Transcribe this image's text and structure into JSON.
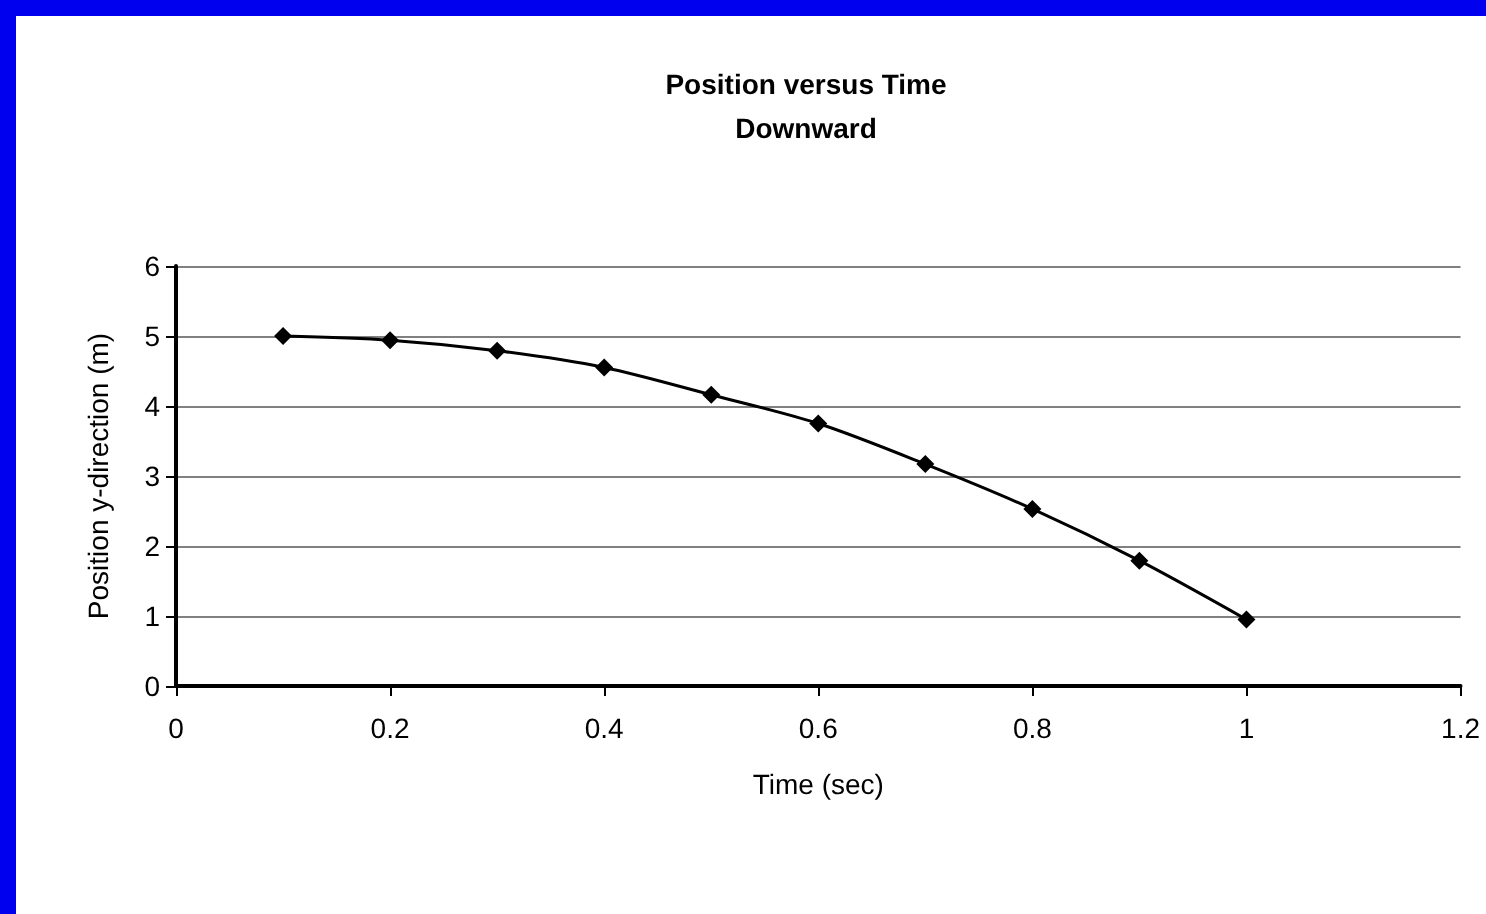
{
  "chart_data": {
    "type": "line",
    "title": "Position versus Time",
    "subtitle": "Downward",
    "xlabel": "Time (sec)",
    "ylabel": "Position y-direction (m)",
    "x": [
      0.1,
      0.2,
      0.3,
      0.4,
      0.5,
      0.6,
      0.7,
      0.8,
      0.9,
      1.0
    ],
    "series": [
      {
        "color": "#000000",
        "values": [
          5.0,
          4.94,
          4.79,
          4.55,
          4.16,
          3.75,
          3.17,
          2.53,
          1.79,
          0.95
        ]
      }
    ],
    "xlim": [
      0,
      1.2
    ],
    "xticks": [
      0,
      0.2,
      0.4,
      0.6,
      0.8,
      1,
      1.2
    ],
    "ylim": [
      0,
      6
    ],
    "yticks": [
      0,
      1,
      2,
      3,
      4,
      5,
      6
    ],
    "grid": "y",
    "marker": "diamond",
    "line_style": "solid"
  }
}
